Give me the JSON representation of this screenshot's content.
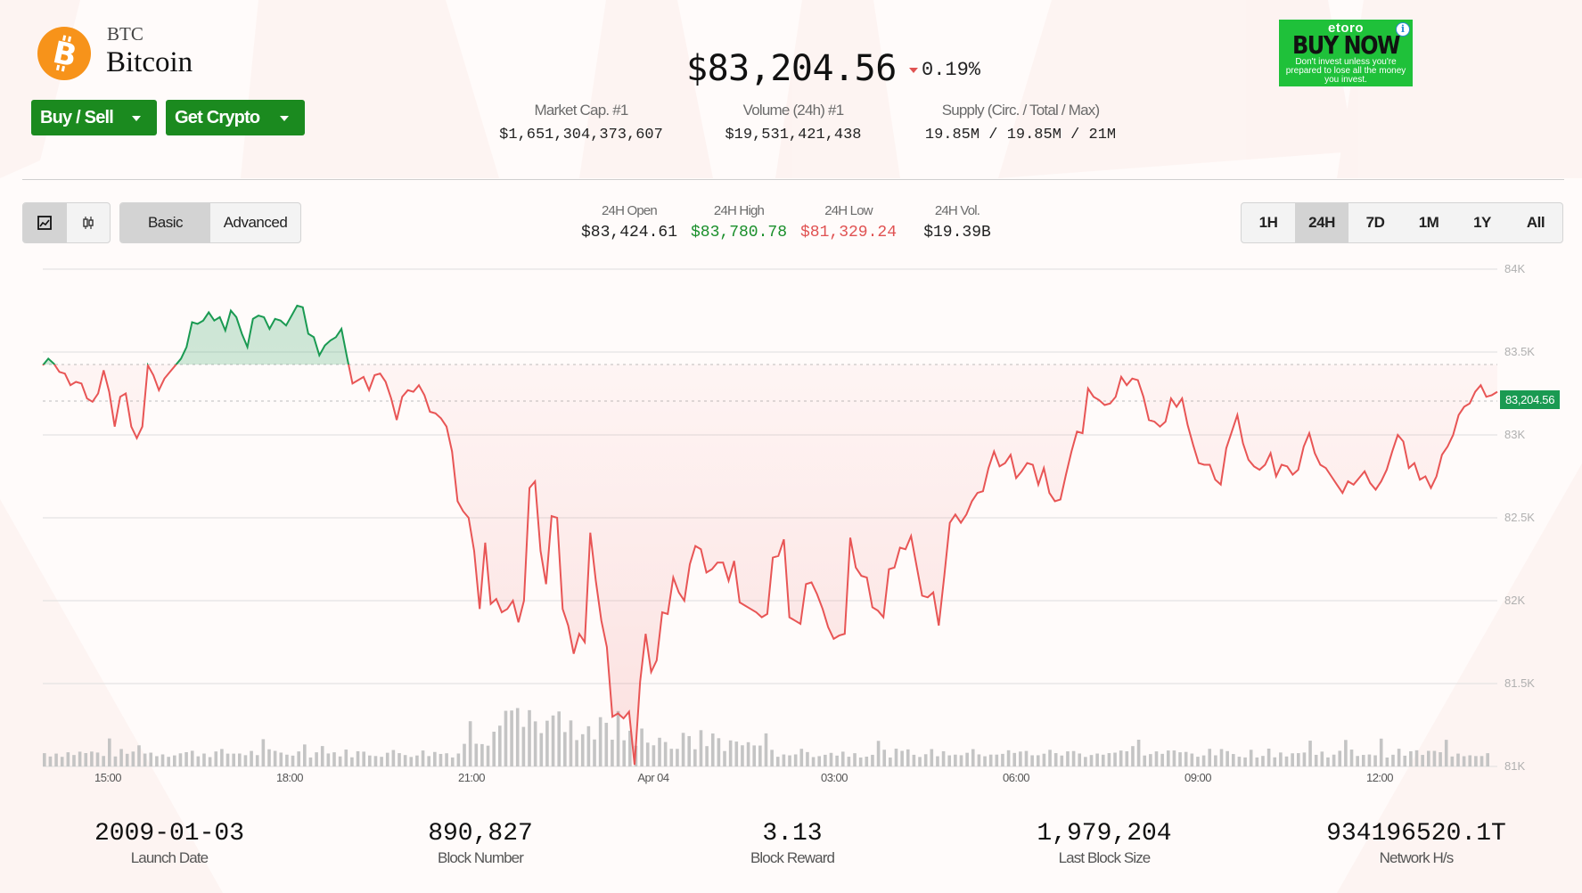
{
  "coin": {
    "symbol": "BTC",
    "name": "Bitcoin",
    "logo_icon": "bitcoin-logo-icon",
    "logo_color": "#f7931a"
  },
  "actions": {
    "buy_sell_label": "Buy / Sell",
    "get_crypto_label": "Get Crypto"
  },
  "price": {
    "current": "$83,204.56",
    "change": "0.19%",
    "change_direction": "down",
    "change_color": "#e05252"
  },
  "top_stats": [
    {
      "label": "Market Cap. #1",
      "value": "$1,651,304,373,607"
    },
    {
      "label": "Volume (24h) #1",
      "value": "$19,531,421,438"
    },
    {
      "label": "Supply (Circ. / Total / Max)",
      "value": "19.85M / 19.85M / 21M"
    }
  ],
  "ad": {
    "brand": "etoro",
    "cta": "BUY NOW",
    "disclaimer": "Don't invest unless you're prepared to lose all the money you invest.",
    "info_glyph": "i",
    "background": "#1fc13a"
  },
  "toolbar": {
    "chart_types": [
      {
        "name": "line-chart",
        "glyph": "☑",
        "active": true
      },
      {
        "name": "candlestick-chart",
        "glyph": "0",
        "active": false
      }
    ],
    "modes": [
      {
        "label": "Basic",
        "active": true
      },
      {
        "label": "Advanced",
        "active": false
      }
    ],
    "ranges": [
      {
        "label": "1H",
        "active": false
      },
      {
        "label": "24H",
        "active": true
      },
      {
        "label": "7D",
        "active": false
      },
      {
        "label": "1M",
        "active": false
      },
      {
        "label": "1Y",
        "active": false
      },
      {
        "label": "All",
        "active": false
      }
    ]
  },
  "ohlc": [
    {
      "label": "24H Open",
      "value": "$83,424.61"
    },
    {
      "label": "24H High",
      "value": "$83,780.78"
    },
    {
      "label": "24H Low",
      "value": "$81,329.24"
    },
    {
      "label": "24H Vol.",
      "value": "$19.39B"
    }
  ],
  "chart_data": {
    "type": "area",
    "title": "Bitcoin 24H price",
    "baseline": 83424.61,
    "current_price_label": "83,204.56",
    "up_color": "#1a9a52",
    "down_color": "#e85555",
    "y_ticks": [
      "84K",
      "83.5K",
      "83K",
      "82.5K",
      "82K",
      "81.5K",
      "81K"
    ],
    "ylim": [
      81000,
      84000
    ],
    "x_ticks": [
      "15:00",
      "18:00",
      "21:00",
      "Apr 04",
      "03:00",
      "06:00",
      "09:00",
      "12:00"
    ],
    "series": [
      {
        "name": "price",
        "values": [
          83420,
          83460,
          83430,
          83380,
          83370,
          83300,
          83320,
          83310,
          83220,
          83200,
          83250,
          83390,
          83260,
          83050,
          83230,
          83250,
          83050,
          82980,
          83050,
          83420,
          83360,
          83270,
          83340,
          83380,
          83420,
          83460,
          83530,
          83680,
          83670,
          83690,
          83740,
          83690,
          83710,
          83630,
          83750,
          83710,
          83610,
          83530,
          83700,
          83720,
          83710,
          83640,
          83700,
          83690,
          83660,
          83720,
          83780,
          83770,
          83610,
          83590,
          83480,
          83540,
          83570,
          83590,
          83640,
          83470,
          83310,
          83330,
          83350,
          83270,
          83360,
          83370,
          83320,
          83220,
          83090,
          83230,
          83270,
          83260,
          83300,
          83240,
          83140,
          83130,
          83100,
          83050,
          82900,
          82600,
          82540,
          82500,
          82300,
          81950,
          82350,
          81980,
          82010,
          81930,
          81950,
          82000,
          81870,
          82000,
          82680,
          82720,
          82300,
          82100,
          82510,
          82500,
          81950,
          81850,
          81680,
          81800,
          81750,
          82410,
          82120,
          81880,
          81720,
          81300,
          81320,
          81290,
          81330,
          81010,
          81510,
          81800,
          81570,
          81640,
          81930,
          81920,
          82140,
          82050,
          82000,
          82220,
          82330,
          82310,
          82170,
          82190,
          82230,
          82230,
          82120,
          82240,
          81990,
          81970,
          81950,
          81930,
          81900,
          81920,
          82260,
          82270,
          82370,
          81900,
          81880,
          81860,
          82100,
          82110,
          82040,
          81950,
          81840,
          81770,
          81790,
          81800,
          82380,
          82200,
          82150,
          82140,
          81960,
          81940,
          81900,
          82190,
          82200,
          82320,
          82310,
          82390,
          82210,
          82030,
          82020,
          82050,
          81850,
          82150,
          82470,
          82520,
          82470,
          82520,
          82600,
          82650,
          82660,
          82800,
          82900,
          82810,
          82830,
          82880,
          82740,
          82780,
          82830,
          82820,
          82700,
          82800,
          82650,
          82600,
          82610,
          82760,
          82900,
          83020,
          83010,
          83280,
          83230,
          83210,
          83180,
          83190,
          83230,
          83350,
          83300,
          83340,
          83330,
          83230,
          83090,
          83080,
          83050,
          83080,
          83220,
          83170,
          83220,
          83060,
          82940,
          82830,
          82820,
          82820,
          82730,
          82700,
          82920,
          83020,
          83120,
          82950,
          82850,
          82810,
          82790,
          82820,
          82890,
          82750,
          82820,
          82810,
          82760,
          82790,
          82930,
          83010,
          82890,
          82820,
          82800,
          82750,
          82700,
          82650,
          82720,
          82700,
          82740,
          82780,
          82710,
          82670,
          82720,
          82790,
          82900,
          83000,
          82960,
          82800,
          82830,
          82730,
          82750,
          82680,
          82750,
          82880,
          82930,
          83000,
          83120,
          83170,
          83190,
          83260,
          83300,
          83230,
          83240,
          83260
        ]
      }
    ],
    "volume_note": "grey volume bars at bottom; spike near 21:00-00:00"
  },
  "footer_stats": [
    {
      "label": "Launch Date",
      "value": "2009-01-03"
    },
    {
      "label": "Block Number",
      "value": "890,827"
    },
    {
      "label": "Block Reward",
      "value": "3.13"
    },
    {
      "label": "Last Block Size",
      "value": "1,979,204"
    },
    {
      "label": "Network H/s",
      "value": "934196520.1T"
    }
  ]
}
